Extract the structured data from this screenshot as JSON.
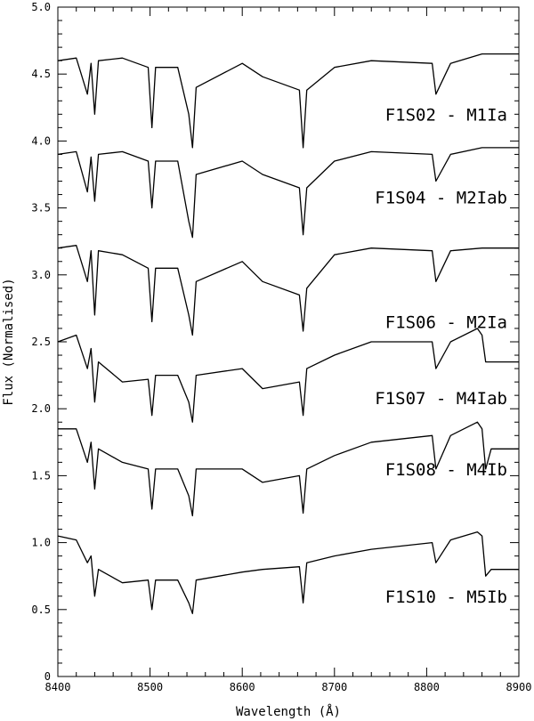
{
  "chart_data": {
    "type": "line",
    "xlabel": "Wavelength (Å)",
    "ylabel": "Flux (Normalised)",
    "xlim": [
      8400,
      8900
    ],
    "ylim": [
      0,
      5.0
    ],
    "x_ticks": [
      "8400",
      "8500",
      "8600",
      "8700",
      "8800",
      "8900"
    ],
    "y_ticks": [
      "0",
      "0.5",
      "1.0",
      "1.5",
      "2.0",
      "2.5",
      "3.0",
      "3.5",
      "4.0",
      "4.5",
      "5.0"
    ],
    "x_tick_values": [
      8400,
      8500,
      8600,
      8700,
      8800,
      8900
    ],
    "y_tick_values": [
      0,
      0.5,
      1.0,
      1.5,
      2.0,
      2.5,
      3.0,
      3.5,
      4.0,
      4.5,
      5.0
    ],
    "series": [
      {
        "name": "F1S02 - M1Ia",
        "label_level": 4.2,
        "x": [
          8400,
          8420,
          8432,
          8436,
          8440,
          8444,
          8470,
          8498,
          8502,
          8506,
          8530,
          8542,
          8546,
          8550,
          8600,
          8622,
          8662,
          8666,
          8670,
          8700,
          8740,
          8806,
          8810,
          8826,
          8860,
          8900
        ],
        "y": [
          4.6,
          4.62,
          4.35,
          4.58,
          4.2,
          4.6,
          4.62,
          4.55,
          4.1,
          4.55,
          4.55,
          4.2,
          3.95,
          4.4,
          4.58,
          4.48,
          4.38,
          3.95,
          4.38,
          4.55,
          4.6,
          4.58,
          4.35,
          4.58,
          4.65,
          4.65
        ]
      },
      {
        "name": "F1S04 - M2Iab",
        "label_level": 3.58,
        "x": [
          8400,
          8420,
          8432,
          8436,
          8440,
          8444,
          8470,
          8498,
          8502,
          8506,
          8530,
          8542,
          8546,
          8550,
          8600,
          8622,
          8662,
          8666,
          8670,
          8700,
          8740,
          8806,
          8810,
          8826,
          8860,
          8900
        ],
        "y": [
          3.9,
          3.92,
          3.62,
          3.88,
          3.55,
          3.9,
          3.92,
          3.85,
          3.5,
          3.85,
          3.85,
          3.4,
          3.28,
          3.75,
          3.85,
          3.75,
          3.65,
          3.3,
          3.65,
          3.85,
          3.92,
          3.9,
          3.7,
          3.9,
          3.95,
          3.95
        ]
      },
      {
        "name": "F1S06 - M2Ia",
        "label_level": 2.65,
        "x": [
          8400,
          8420,
          8432,
          8436,
          8440,
          8444,
          8470,
          8498,
          8502,
          8506,
          8530,
          8542,
          8546,
          8550,
          8600,
          8622,
          8662,
          8666,
          8670,
          8700,
          8740,
          8806,
          8810,
          8826,
          8860,
          8900
        ],
        "y": [
          3.2,
          3.22,
          2.95,
          3.18,
          2.7,
          3.18,
          3.15,
          3.05,
          2.65,
          3.05,
          3.05,
          2.7,
          2.55,
          2.95,
          3.1,
          2.95,
          2.85,
          2.58,
          2.9,
          3.15,
          3.2,
          3.18,
          2.95,
          3.18,
          3.2,
          3.2
        ]
      },
      {
        "name": "F1S07 - M4Iab",
        "label_level": 2.08,
        "x": [
          8400,
          8420,
          8432,
          8436,
          8440,
          8444,
          8470,
          8498,
          8502,
          8506,
          8530,
          8542,
          8546,
          8550,
          8600,
          8622,
          8662,
          8666,
          8670,
          8700,
          8740,
          8806,
          8810,
          8826,
          8855,
          8860,
          8864,
          8870,
          8900
        ],
        "y": [
          2.5,
          2.55,
          2.3,
          2.45,
          2.05,
          2.35,
          2.2,
          2.22,
          1.95,
          2.25,
          2.25,
          2.05,
          1.9,
          2.25,
          2.3,
          2.15,
          2.2,
          1.95,
          2.3,
          2.4,
          2.5,
          2.5,
          2.3,
          2.5,
          2.6,
          2.55,
          2.35,
          2.35,
          2.35
        ]
      },
      {
        "name": "F1S08 - M4Ib",
        "label_level": 1.55,
        "x": [
          8400,
          8420,
          8432,
          8436,
          8440,
          8444,
          8470,
          8498,
          8502,
          8506,
          8530,
          8542,
          8546,
          8550,
          8600,
          8622,
          8662,
          8666,
          8670,
          8700,
          8740,
          8806,
          8810,
          8826,
          8855,
          8860,
          8864,
          8870,
          8900
        ],
        "y": [
          1.85,
          1.85,
          1.6,
          1.75,
          1.4,
          1.7,
          1.6,
          1.55,
          1.25,
          1.55,
          1.55,
          1.35,
          1.2,
          1.55,
          1.55,
          1.45,
          1.5,
          1.22,
          1.55,
          1.65,
          1.75,
          1.8,
          1.55,
          1.8,
          1.9,
          1.85,
          1.55,
          1.7,
          1.7
        ]
      },
      {
        "name": "F1S10 - M5Ib",
        "label_level": 0.6,
        "x": [
          8400,
          8420,
          8432,
          8436,
          8440,
          8444,
          8470,
          8498,
          8502,
          8506,
          8530,
          8542,
          8546,
          8550,
          8600,
          8622,
          8662,
          8666,
          8670,
          8700,
          8740,
          8806,
          8810,
          8826,
          8855,
          8860,
          8864,
          8870,
          8900
        ],
        "y": [
          1.05,
          1.02,
          0.85,
          0.9,
          0.6,
          0.8,
          0.7,
          0.72,
          0.5,
          0.72,
          0.72,
          0.55,
          0.47,
          0.72,
          0.78,
          0.8,
          0.82,
          0.55,
          0.85,
          0.9,
          0.95,
          1.0,
          0.85,
          1.02,
          1.08,
          1.05,
          0.75,
          0.8,
          0.8
        ]
      }
    ]
  }
}
